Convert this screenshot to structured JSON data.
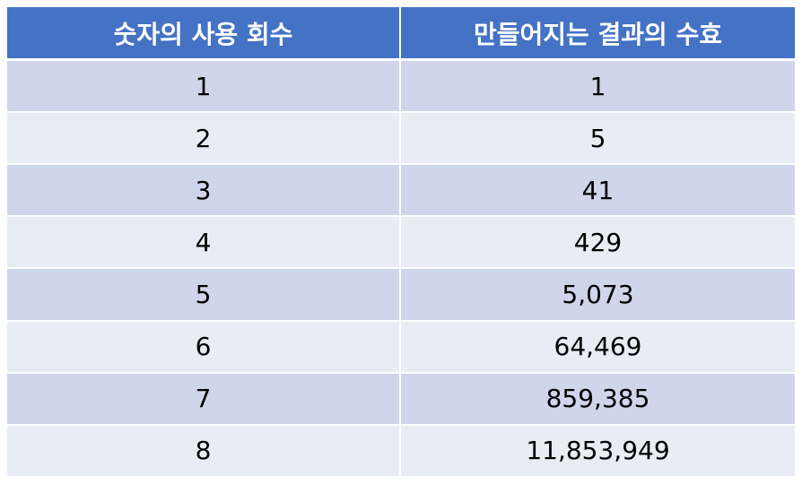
{
  "table": {
    "headers": [
      "숫자의 사용 회수",
      "만들어지는 결과의 수효"
    ],
    "rows": [
      [
        "1",
        "1"
      ],
      [
        "2",
        "5"
      ],
      [
        "3",
        "41"
      ],
      [
        "4",
        "429"
      ],
      [
        "5",
        "5,073"
      ],
      [
        "6",
        "64,469"
      ],
      [
        "7",
        "859,385"
      ],
      [
        "8",
        "11,853,949"
      ]
    ]
  },
  "colors": {
    "header_bg": "#4472c4",
    "row_odd_bg": "#cfd5ea",
    "row_even_bg": "#e9ebf5"
  }
}
